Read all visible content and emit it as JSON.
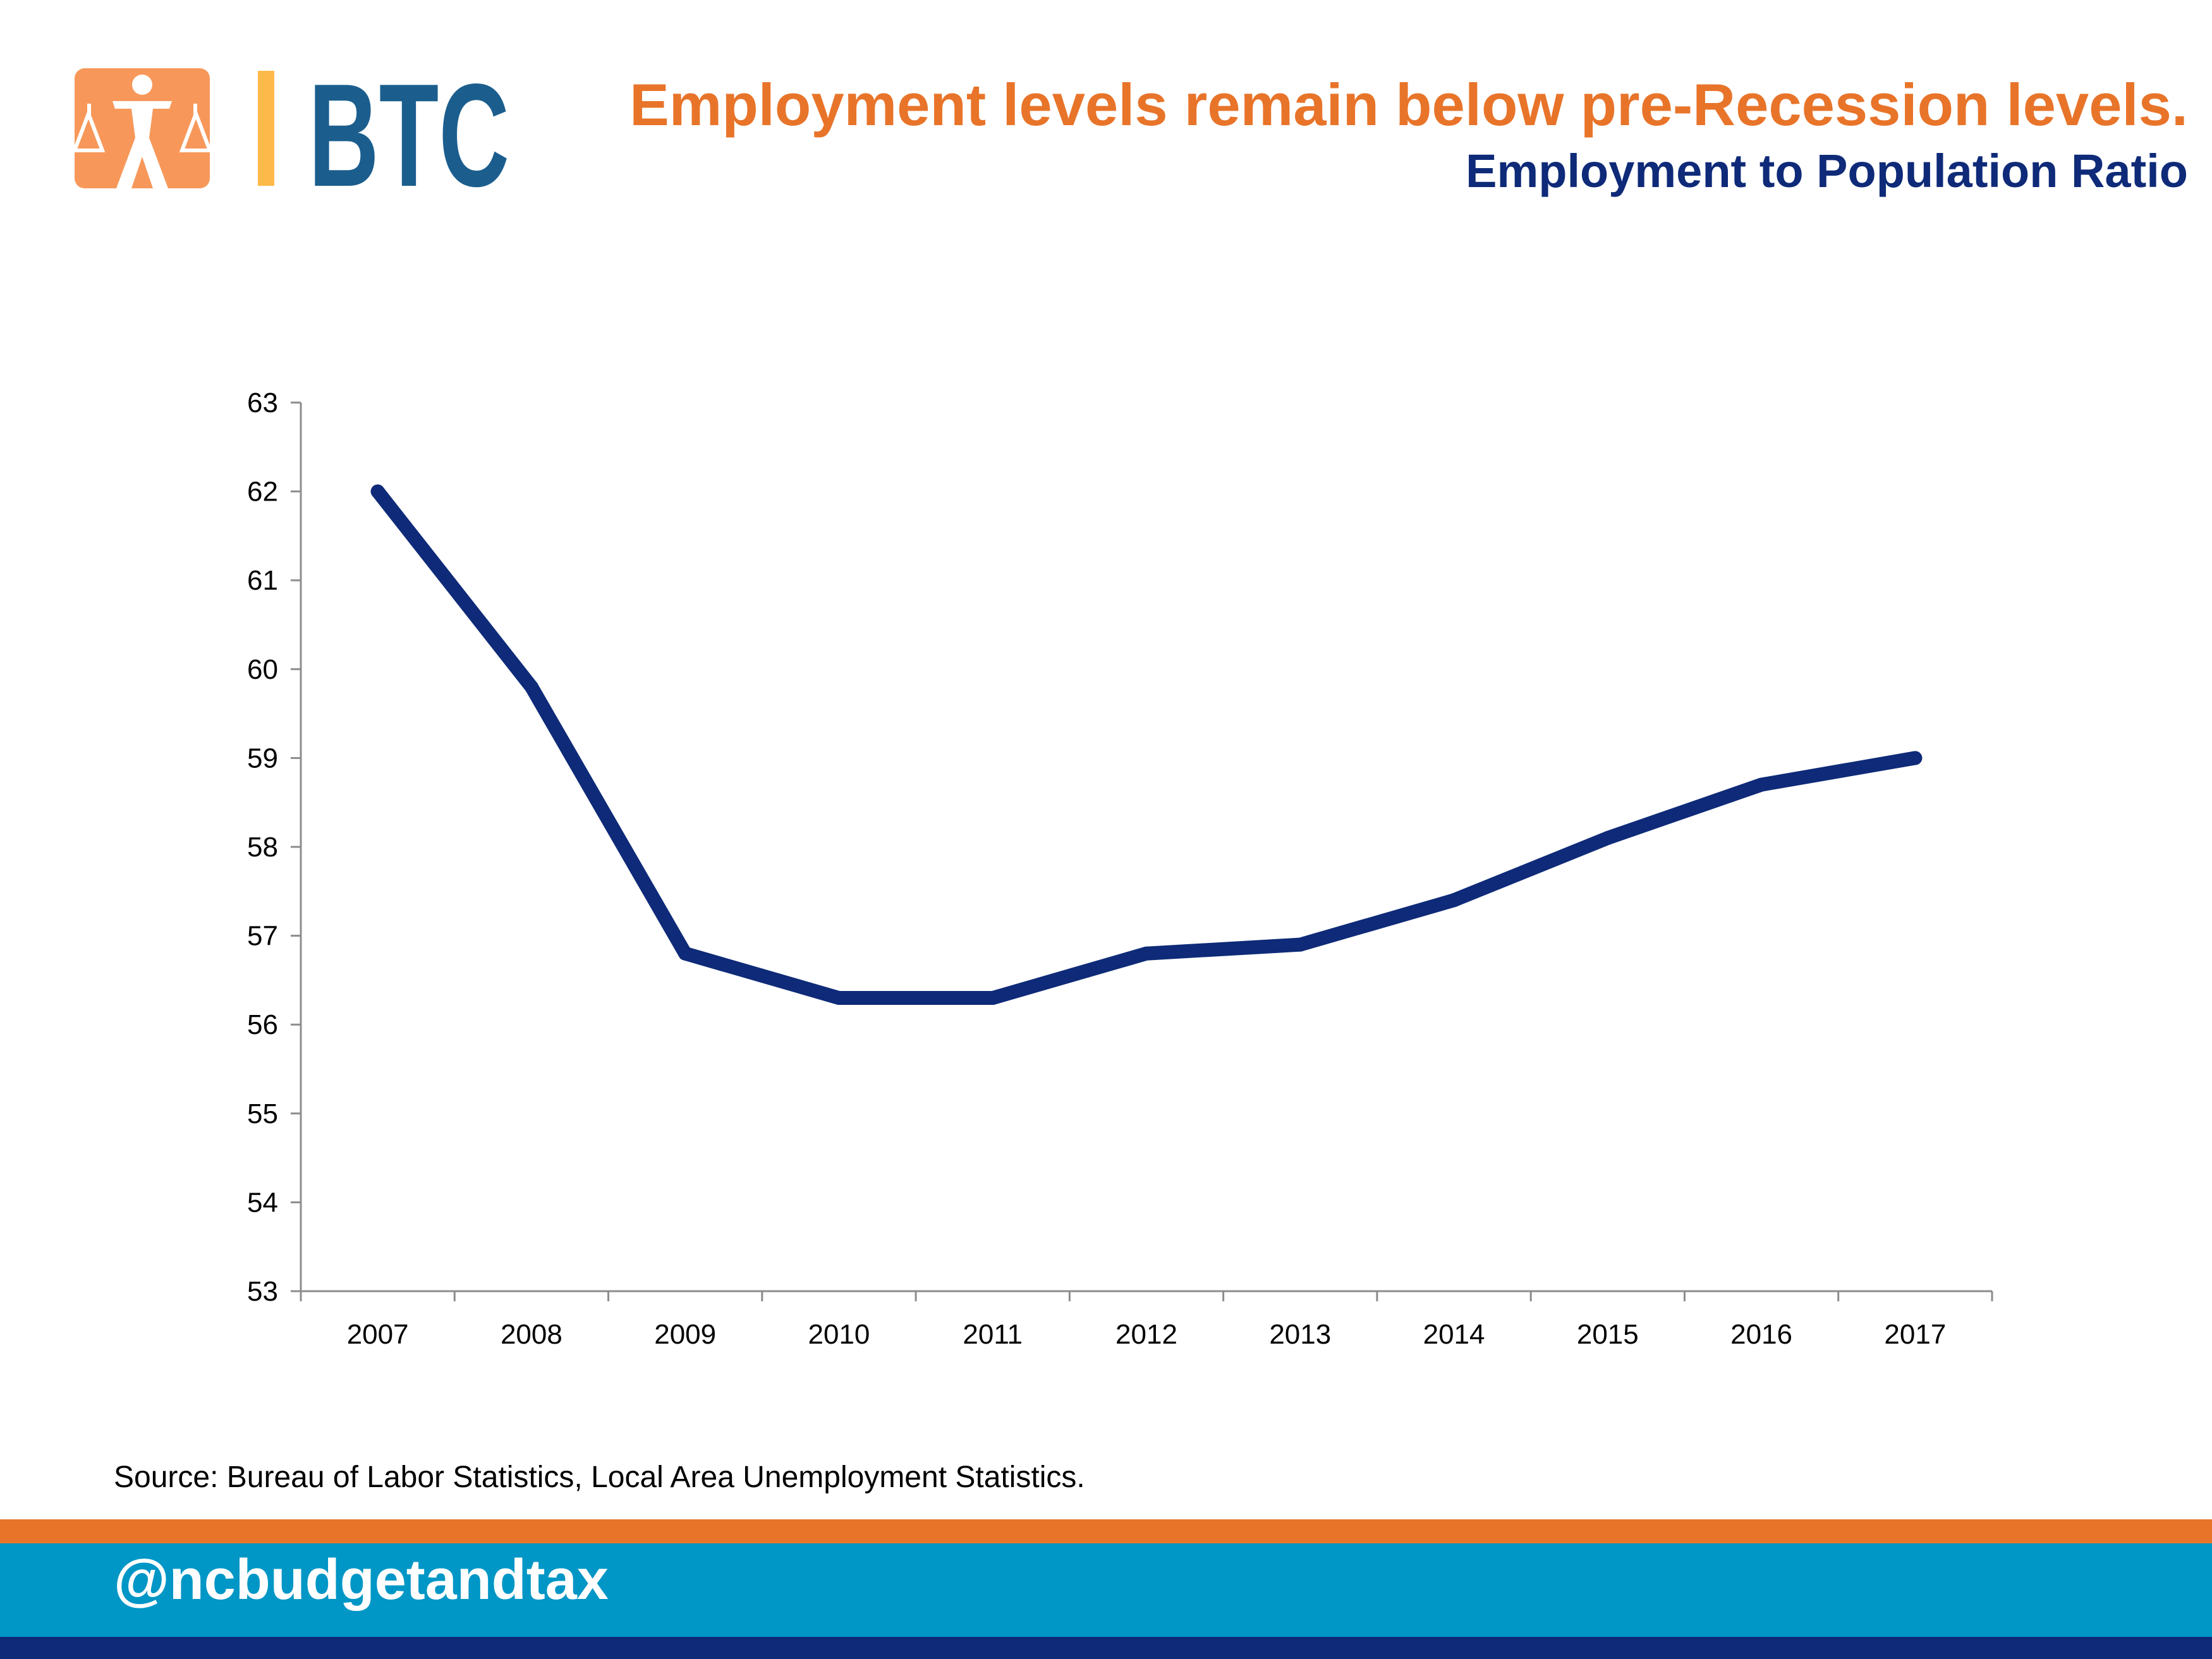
{
  "header": {
    "logo_text": "BTC",
    "title": "Employment levels remain below pre-Recession levels.",
    "subtitle": "Employment to Population Ratio"
  },
  "colors": {
    "orange": "#E8742A",
    "line": "#0E2A78",
    "footer_blue": "#0096C6",
    "footer_navy": "#0E2A78",
    "logo_orange": "#F7985A",
    "logo_yellow": "#FDB94A",
    "logo_blue": "#1B5E8E"
  },
  "chart_data": {
    "type": "line",
    "categories": [
      "2007",
      "2008",
      "2009",
      "2010",
      "2011",
      "2012",
      "2013",
      "2014",
      "2015",
      "2016",
      "2017"
    ],
    "series": [
      {
        "values": [
          62.0,
          59.8,
          56.8,
          56.3,
          56.3,
          56.8,
          56.9,
          57.4,
          58.1,
          58.7,
          59.0
        ]
      }
    ],
    "yticks": [
      "53",
      "54",
      "55",
      "56",
      "57",
      "58",
      "59",
      "60",
      "61",
      "62",
      "63"
    ],
    "ylim": [
      53,
      63
    ],
    "grid": false,
    "legend": "none"
  },
  "source": "Source: Bureau of Labor Statistics, Local Area Unemployment Statistics.",
  "footer": {
    "handle": "@ncbudgetandtax"
  }
}
